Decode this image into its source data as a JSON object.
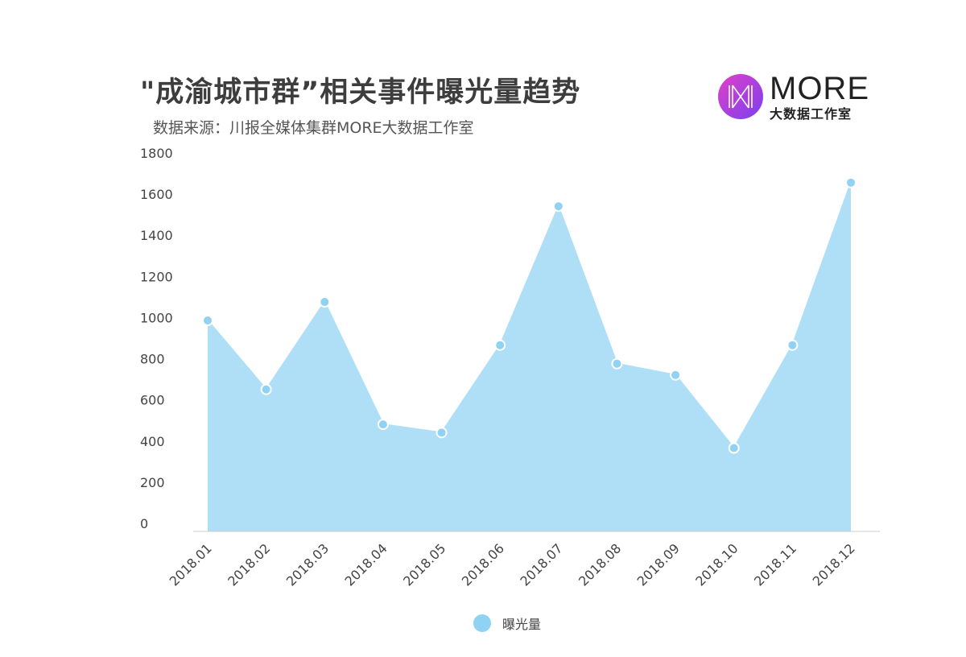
{
  "title": "\"成渝城市群”相关事件曝光量趋势",
  "subtitle": "数据来源：川报全媒体集群MORE大数据工作室",
  "logo": {
    "word": "MORE",
    "sub": "大数据工作室"
  },
  "colors": {
    "area": "#aedff7",
    "line": "#aedff7",
    "point": "#8fd2f3",
    "axis": "#cccccc",
    "text": "#444444"
  },
  "chart_data": {
    "type": "area",
    "categories": [
      "2018.01",
      "2018.02",
      "2018.03",
      "2018.04",
      "2018.05",
      "2018.06",
      "2018.07",
      "2018.08",
      "2018.09",
      "2018.10",
      "2018.11",
      "2018.12"
    ],
    "series": [
      {
        "name": "曝光量",
        "values": [
          1025,
          690,
          1115,
          520,
          480,
          905,
          1580,
          815,
          760,
          405,
          905,
          1695
        ]
      }
    ],
    "ylim": [
      0,
      1800
    ],
    "yticks": [
      0,
      200,
      400,
      600,
      800,
      1000,
      1200,
      1400,
      1600,
      1800
    ],
    "grid": false,
    "legend": "bottom"
  }
}
